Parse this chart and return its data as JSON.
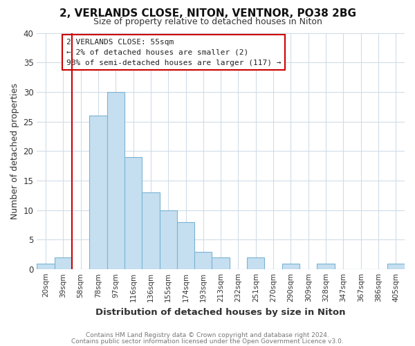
{
  "title": "2, VERLANDS CLOSE, NITON, VENTNOR, PO38 2BG",
  "subtitle": "Size of property relative to detached houses in Niton",
  "xlabel": "Distribution of detached houses by size in Niton",
  "ylabel": "Number of detached properties",
  "bin_labels": [
    "20sqm",
    "39sqm",
    "58sqm",
    "78sqm",
    "97sqm",
    "116sqm",
    "136sqm",
    "155sqm",
    "174sqm",
    "193sqm",
    "213sqm",
    "232sqm",
    "251sqm",
    "270sqm",
    "290sqm",
    "309sqm",
    "328sqm",
    "347sqm",
    "367sqm",
    "386sqm",
    "405sqm"
  ],
  "bar_heights": [
    1,
    2,
    0,
    26,
    30,
    19,
    13,
    10,
    8,
    3,
    2,
    0,
    2,
    0,
    1,
    0,
    1,
    0,
    0,
    0,
    1
  ],
  "bar_color": "#c5dff0",
  "bar_edge_color": "#7ab3d4",
  "ylim": [
    0,
    40
  ],
  "yticks": [
    0,
    5,
    10,
    15,
    20,
    25,
    30,
    35,
    40
  ],
  "vline_color": "#cc0000",
  "annotation_lines": [
    "2 VERLANDS CLOSE: 55sqm",
    "← 2% of detached houses are smaller (2)",
    "98% of semi-detached houses are larger (117) →"
  ],
  "footer_line1": "Contains HM Land Registry data © Crown copyright and database right 2024.",
  "footer_line2": "Contains public sector information licensed under the Open Government Licence v3.0.",
  "grid_color": "#d0dce8",
  "background_color": "#ffffff",
  "plot_bg_color": "#ffffff"
}
